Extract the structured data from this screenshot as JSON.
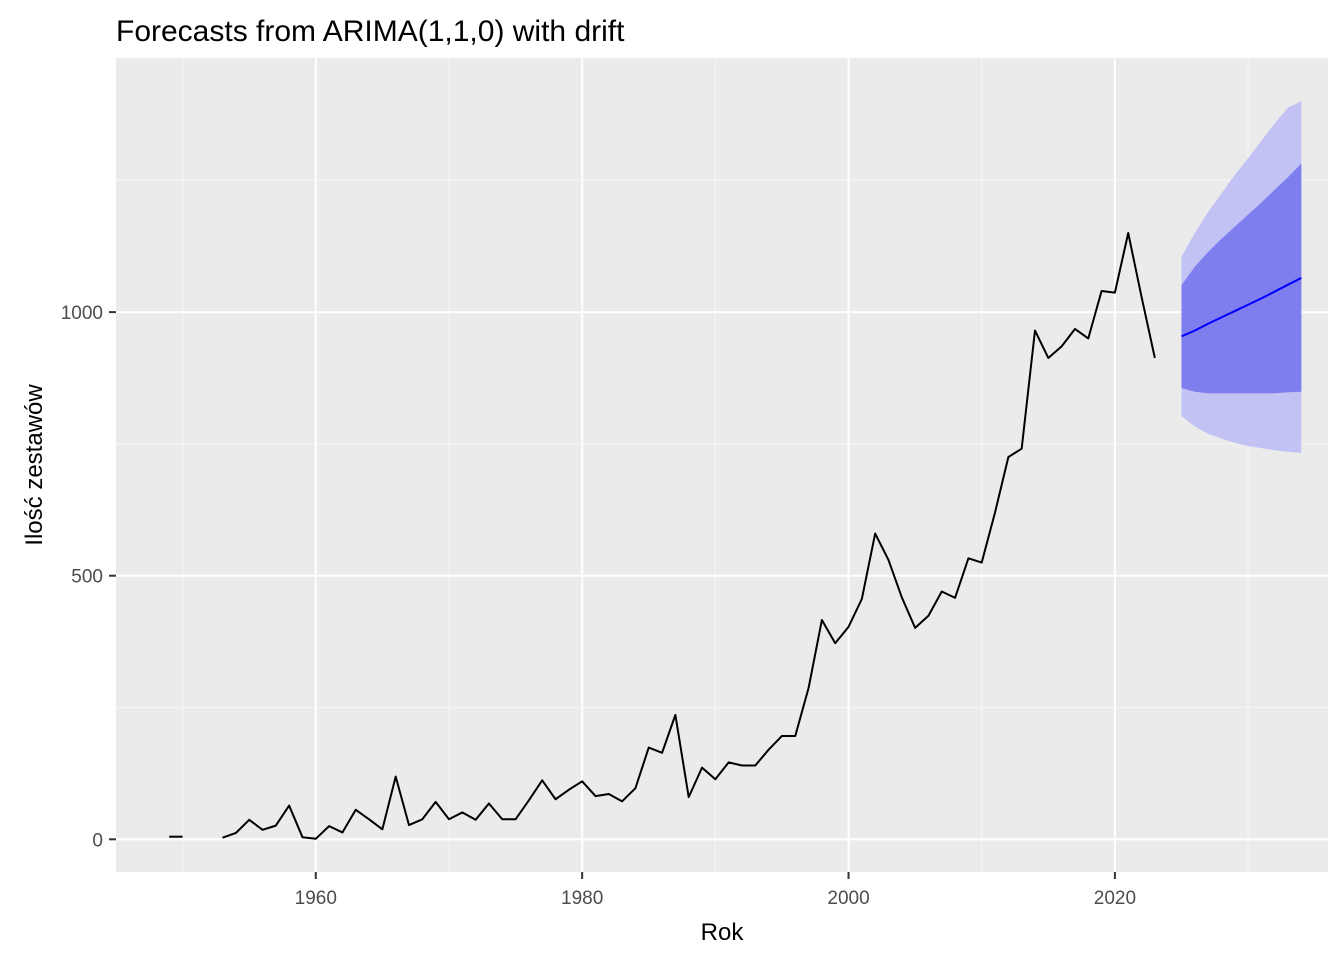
{
  "chart_data": {
    "type": "line",
    "title": "Forecasts from ARIMA(1,1,0) with drift",
    "xlabel": "Rok",
    "ylabel": "Ilość zestawów",
    "xlim": [
      1945,
      2036
    ],
    "ylim": [
      -62,
      1482
    ],
    "x_ticks": [
      1960,
      1980,
      2000,
      2020
    ],
    "x_tick_labels": [
      "1960",
      "1980",
      "2000",
      "2020"
    ],
    "y_ticks": [
      0,
      500,
      1000
    ],
    "y_tick_labels": [
      "0",
      "500",
      "1000"
    ],
    "grid": true,
    "legend": "none",
    "series": [
      {
        "values": [
          {
            "x": 1949,
            "y": 5
          },
          {
            "x": 1950,
            "y": 5
          },
          {
            "x": 1953,
            "y": 3
          },
          {
            "x": 1954,
            "y": 12
          },
          {
            "x": 1955,
            "y": 37
          },
          {
            "x": 1956,
            "y": 18
          },
          {
            "x": 1957,
            "y": 26
          },
          {
            "x": 1958,
            "y": 64
          },
          {
            "x": 1959,
            "y": 4
          },
          {
            "x": 1960,
            "y": 1
          },
          {
            "x": 1961,
            "y": 25
          },
          {
            "x": 1962,
            "y": 13
          },
          {
            "x": 1963,
            "y": 56
          },
          {
            "x": 1964,
            "y": 38
          },
          {
            "x": 1965,
            "y": 19
          },
          {
            "x": 1966,
            "y": 119
          },
          {
            "x": 1967,
            "y": 27
          },
          {
            "x": 1968,
            "y": 38
          },
          {
            "x": 1969,
            "y": 71
          },
          {
            "x": 1970,
            "y": 38
          },
          {
            "x": 1971,
            "y": 51
          },
          {
            "x": 1972,
            "y": 37
          },
          {
            "x": 1973,
            "y": 68
          },
          {
            "x": 1974,
            "y": 38
          },
          {
            "x": 1975,
            "y": 38
          },
          {
            "x": 1976,
            "y": 74
          },
          {
            "x": 1977,
            "y": 112
          },
          {
            "x": 1978,
            "y": 76
          },
          {
            "x": 1979,
            "y": 94
          },
          {
            "x": 1980,
            "y": 110
          },
          {
            "x": 1981,
            "y": 82
          },
          {
            "x": 1982,
            "y": 86
          },
          {
            "x": 1983,
            "y": 72
          },
          {
            "x": 1984,
            "y": 97
          },
          {
            "x": 1985,
            "y": 174
          },
          {
            "x": 1986,
            "y": 164
          },
          {
            "x": 1987,
            "y": 236
          },
          {
            "x": 1988,
            "y": 80
          },
          {
            "x": 1989,
            "y": 136
          },
          {
            "x": 1990,
            "y": 114
          },
          {
            "x": 1991,
            "y": 146
          },
          {
            "x": 1992,
            "y": 140
          },
          {
            "x": 1993,
            "y": 140
          },
          {
            "x": 1994,
            "y": 170
          },
          {
            "x": 1995,
            "y": 196
          },
          {
            "x": 1996,
            "y": 196
          },
          {
            "x": 1997,
            "y": 287
          },
          {
            "x": 1998,
            "y": 416
          },
          {
            "x": 1999,
            "y": 372
          },
          {
            "x": 2000,
            "y": 403
          },
          {
            "x": 2001,
            "y": 456
          },
          {
            "x": 2002,
            "y": 580
          },
          {
            "x": 2003,
            "y": 530
          },
          {
            "x": 2004,
            "y": 459
          },
          {
            "x": 2005,
            "y": 401
          },
          {
            "x": 2006,
            "y": 424
          },
          {
            "x": 2007,
            "y": 470
          },
          {
            "x": 2008,
            "y": 458
          },
          {
            "x": 2009,
            "y": 533
          },
          {
            "x": 2010,
            "y": 525
          },
          {
            "x": 2011,
            "y": 620
          },
          {
            "x": 2012,
            "y": 725
          },
          {
            "x": 2013,
            "y": 741
          },
          {
            "x": 2014,
            "y": 965
          },
          {
            "x": 2015,
            "y": 913
          },
          {
            "x": 2016,
            "y": 935
          },
          {
            "x": 2017,
            "y": 968
          },
          {
            "x": 2018,
            "y": 950
          },
          {
            "x": 2019,
            "y": 1040
          },
          {
            "x": 2020,
            "y": 1037
          },
          {
            "x": 2021,
            "y": 1150
          },
          {
            "x": 2022,
            "y": 1029
          },
          {
            "x": 2023,
            "y": 913
          }
        ]
      }
    ],
    "forecast": {
      "years": [
        2025,
        2026,
        2027,
        2028,
        2029,
        2030,
        2031,
        2032,
        2033,
        2034
      ],
      "mean": [
        954,
        965,
        978,
        990,
        1002,
        1014,
        1026,
        1039,
        1052,
        1065
      ],
      "lo80": [
        856,
        849,
        846,
        846,
        846,
        846,
        846,
        846,
        848,
        849
      ],
      "hi80": [
        1051,
        1086,
        1114,
        1139,
        1162,
        1185,
        1208,
        1232,
        1256,
        1282
      ],
      "lo95": [
        803,
        783,
        769,
        760,
        752,
        746,
        742,
        738,
        735,
        733
      ],
      "hi95": [
        1105,
        1150,
        1190,
        1225,
        1260,
        1292,
        1325,
        1358,
        1388,
        1400
      ]
    },
    "colors": {
      "panel_background": "#ebebeb",
      "grid_major": "#ffffff",
      "grid_minor": "#f5f5f5",
      "history_line": "#000000",
      "forecast_line": "#0000ff",
      "band_80": "#7e7eee",
      "band_95": "#c2c2f4"
    }
  }
}
